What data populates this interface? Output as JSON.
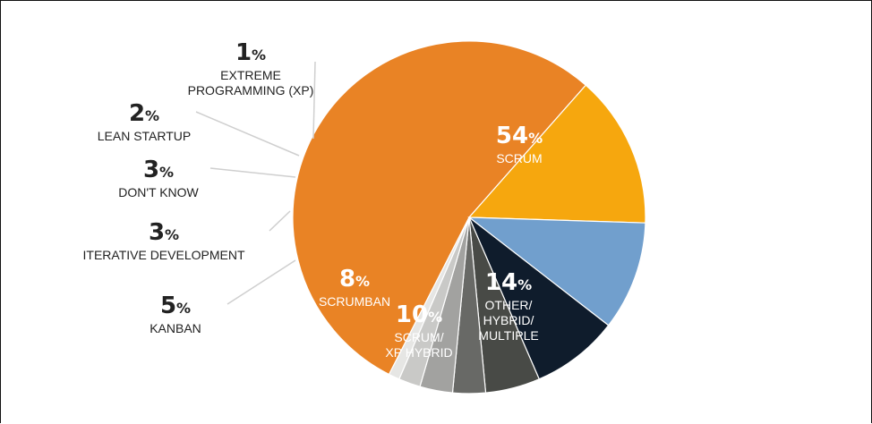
{
  "chart_data": {
    "type": "pie",
    "title": "",
    "slices": [
      {
        "label": [
          "SCRUM"
        ],
        "value": 54,
        "color": "#E98325",
        "label_style": "inside"
      },
      {
        "label": [
          "OTHER/",
          "HYBRID/",
          "MULTIPLE"
        ],
        "value": 14,
        "color": "#F6A70E",
        "label_style": "inside"
      },
      {
        "label": [
          "SCRUM/",
          "XP HYBRID"
        ],
        "value": 10,
        "color": "#719FCD",
        "label_style": "inside"
      },
      {
        "label": [
          "SCRUMBAN"
        ],
        "value": 8,
        "color": "#0F1C2C",
        "label_style": "inside"
      },
      {
        "label": [
          "KANBAN"
        ],
        "value": 5,
        "color": "#484A46",
        "label_style": "outside"
      },
      {
        "label": [
          "ITERATIVE DEVELOPMENT"
        ],
        "value": 3,
        "color": "#686966",
        "label_style": "outside"
      },
      {
        "label": [
          "DON'T KNOW"
        ],
        "value": 3,
        "color": "#A2A2A0",
        "label_style": "outside"
      },
      {
        "label": [
          "LEAN STARTUP"
        ],
        "value": 2,
        "color": "#C9C9C7",
        "label_style": "outside"
      },
      {
        "label": [
          "EXTREME",
          "PROGRAMMING (XP)"
        ],
        "value": 1,
        "color": "#E6E6E4",
        "label_style": "outside"
      }
    ],
    "percent_sign": "%",
    "start_angle_deg": 207,
    "direction": "clockwise"
  }
}
